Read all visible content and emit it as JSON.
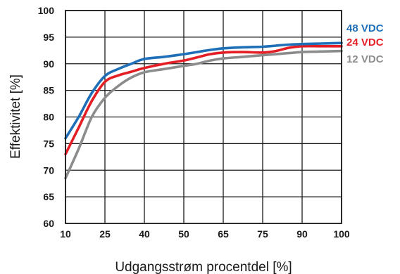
{
  "chart_data": {
    "type": "line",
    "xlabel": "Udgangsstrøm procentdel [%]",
    "ylabel": "Effektivitet [%]",
    "x_ticks": [
      10,
      25,
      40,
      50,
      65,
      75,
      90,
      100
    ],
    "y_ticks": [
      60,
      65,
      70,
      75,
      80,
      85,
      90,
      95,
      100
    ],
    "ylim": [
      60,
      100
    ],
    "grid": true,
    "legend_placement": "right",
    "series": [
      {
        "name": "48 VDC",
        "color": "#1f6fb8",
        "points": [
          [
            10,
            76
          ],
          [
            15,
            80
          ],
          [
            20,
            84.5
          ],
          [
            25,
            87.7
          ],
          [
            30,
            89
          ],
          [
            35,
            90
          ],
          [
            40,
            90.9
          ],
          [
            45,
            91.3
          ],
          [
            50,
            91.8
          ],
          [
            55,
            92.2
          ],
          [
            60,
            92.6
          ],
          [
            65,
            92.9
          ],
          [
            70,
            93.1
          ],
          [
            75,
            93.2
          ],
          [
            80,
            93.4
          ],
          [
            85,
            93.6
          ],
          [
            90,
            93.7
          ],
          [
            95,
            93.8
          ],
          [
            100,
            93.9
          ]
        ]
      },
      {
        "name": "24 VDC",
        "color": "#e31e24",
        "points": [
          [
            10,
            73
          ],
          [
            15,
            78
          ],
          [
            20,
            83
          ],
          [
            25,
            86.6
          ],
          [
            30,
            87.8
          ],
          [
            35,
            88.5
          ],
          [
            40,
            89.2
          ],
          [
            45,
            90
          ],
          [
            50,
            90.6
          ],
          [
            55,
            91.2
          ],
          [
            60,
            91.8
          ],
          [
            65,
            92.1
          ],
          [
            70,
            92.2
          ],
          [
            75,
            92.1
          ],
          [
            80,
            92.4
          ],
          [
            85,
            93
          ],
          [
            90,
            93.3
          ],
          [
            95,
            93.3
          ],
          [
            100,
            93.3
          ]
        ]
      },
      {
        "name": "12 VDC",
        "color": "#8c8c8c",
        "points": [
          [
            10,
            68.5
          ],
          [
            15,
            74
          ],
          [
            20,
            80
          ],
          [
            25,
            83.6
          ],
          [
            30,
            85.8
          ],
          [
            35,
            87.4
          ],
          [
            40,
            88.4
          ],
          [
            45,
            89
          ],
          [
            50,
            89.6
          ],
          [
            55,
            90
          ],
          [
            60,
            90.6
          ],
          [
            65,
            91
          ],
          [
            70,
            91.3
          ],
          [
            75,
            91.6
          ],
          [
            80,
            91.8
          ],
          [
            85,
            92
          ],
          [
            90,
            92.2
          ],
          [
            95,
            92.3
          ],
          [
            100,
            92.4
          ]
        ]
      }
    ]
  }
}
